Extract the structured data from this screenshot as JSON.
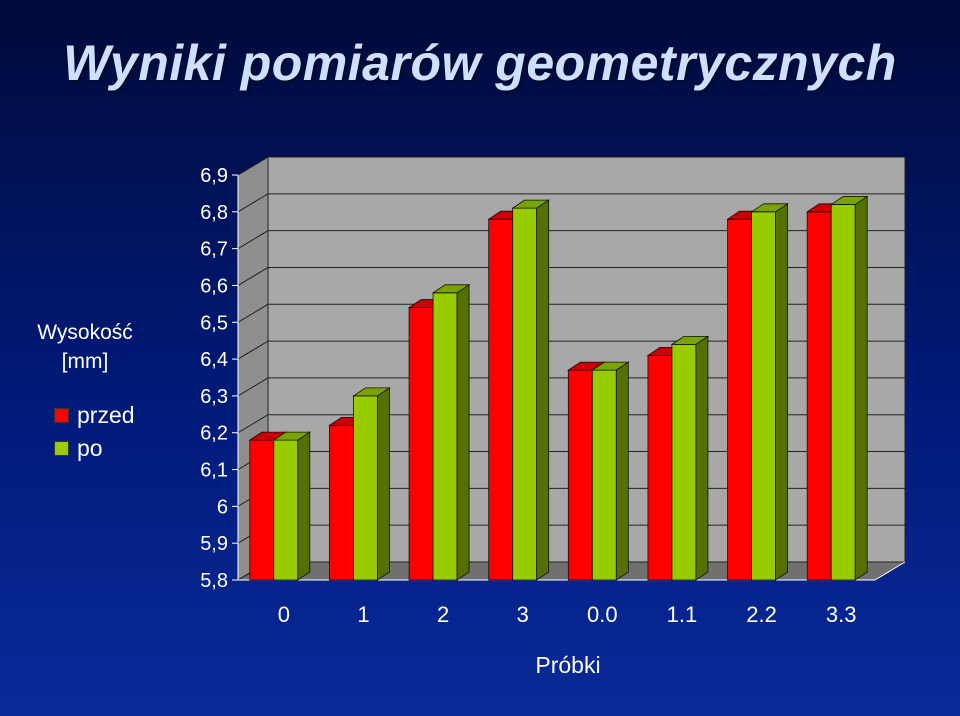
{
  "chart_data": {
    "type": "bar",
    "title": "Wyniki pomiarów geometrycznych",
    "ylabel_line1": "Wysokość",
    "ylabel_line2": "[mm]",
    "xlabel": "Próbki",
    "categories": [
      "0",
      "1",
      "2",
      "3",
      "0.0",
      "1.1",
      "2.2",
      "3.3"
    ],
    "series": [
      {
        "name": "przed",
        "color": "#ff0000",
        "values": [
          6.18,
          6.22,
          6.54,
          6.78,
          6.37,
          6.41,
          6.78,
          6.8
        ]
      },
      {
        "name": "po",
        "color": "#99cc00",
        "values": [
          6.18,
          6.3,
          6.58,
          6.81,
          6.37,
          6.44,
          6.8,
          6.82
        ]
      }
    ],
    "yticks": [
      "5,8",
      "5,9",
      "6",
      "6,1",
      "6,2",
      "6,3",
      "6,4",
      "6,5",
      "6,6",
      "6,7",
      "6,8",
      "6,9"
    ],
    "ylim": [
      5.8,
      6.9
    ],
    "grid": true,
    "legend_position": "left"
  }
}
